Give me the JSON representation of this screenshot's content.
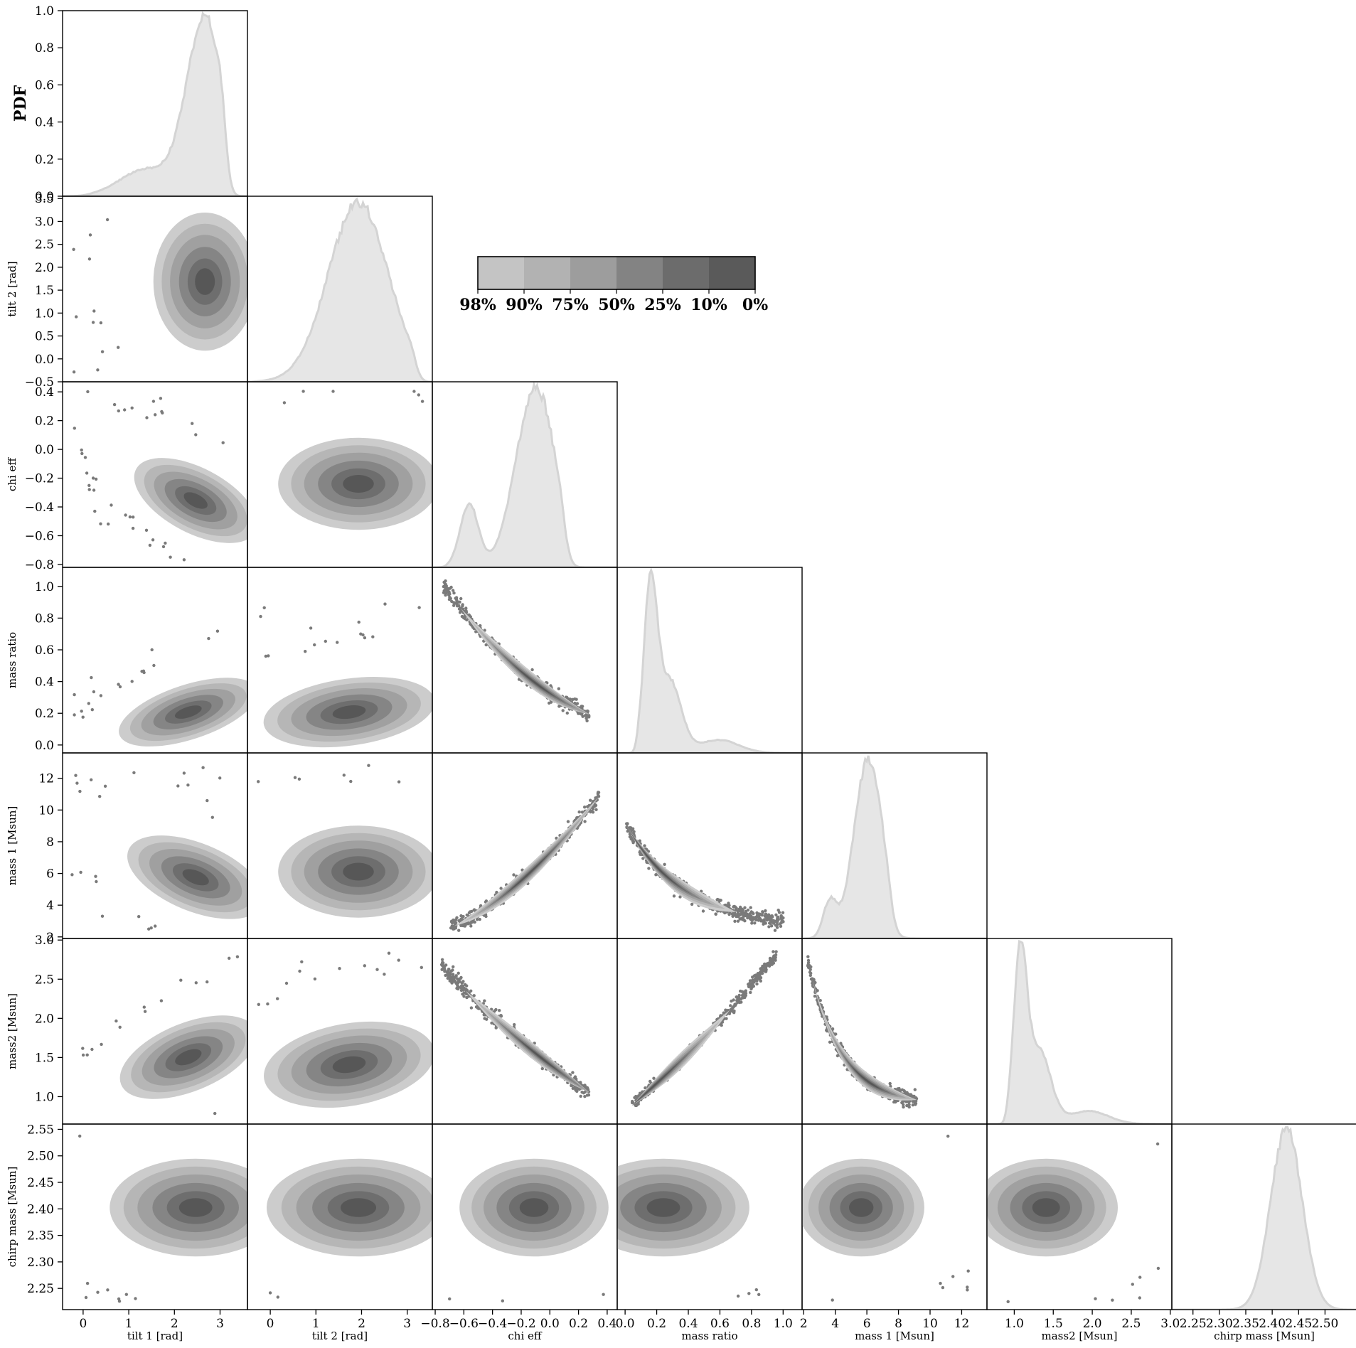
{
  "chart_data": {
    "type": "corner",
    "diag_label": "PDF",
    "colorbar": {
      "labels": [
        "98%",
        "90%",
        "75%",
        "50%",
        "25%",
        "10%",
        "0%"
      ],
      "colors": [
        "#c4c4c4",
        "#b2b2b2",
        "#9d9d9d",
        "#838383",
        "#6c6c6c",
        "#5a5a5a"
      ]
    },
    "colors": {
      "hist_fill": "#e6e6e6",
      "hist_line": "#d4d4d4",
      "scatter": "#7a7a7a",
      "levels": [
        "#cccccc",
        "#b6b6b6",
        "#a0a0a0",
        "#858585",
        "#6e6e6e",
        "#575757"
      ]
    },
    "params": [
      {
        "name": "tilt_1",
        "label": "tilt 1 [rad]",
        "range": [
          -0.45,
          3.6
        ],
        "ticks": [
          0,
          1,
          2,
          3
        ],
        "tick_labels": [
          "0",
          "1",
          "2",
          "3"
        ],
        "mode": 2.7,
        "hist_shape": "left-skewed",
        "hist_y_ticks": [
          0.0,
          0.2,
          0.4,
          0.6,
          0.8,
          1.0
        ],
        "hist_y_tick_labels": [
          "0.0",
          "0.2",
          "0.4",
          "0.6",
          "0.8",
          "1.0"
        ],
        "hist_y_range": [
          0,
          1
        ]
      },
      {
        "name": "tilt_2",
        "label": "tilt 2 [rad]",
        "range": [
          -0.5,
          3.55
        ],
        "ticks": [
          0,
          1,
          2,
          3
        ],
        "tick_labels": [
          "0",
          "1",
          "2",
          "3"
        ],
        "y_ticks": [
          -0.5,
          0.0,
          0.5,
          1.0,
          1.5,
          2.0,
          2.5,
          3.0,
          3.5
        ],
        "y_tick_labels": [
          "−0.5",
          "0.0",
          "0.5",
          "1.0",
          "1.5",
          "2.0",
          "2.5",
          "3.0",
          "3.5"
        ],
        "mode": 1.9,
        "hist_shape": "broad"
      },
      {
        "name": "chi_eff",
        "label": "chi eff",
        "range": [
          -0.82,
          0.47
        ],
        "ticks": [
          -0.8,
          -0.6,
          -0.4,
          -0.2,
          0.0,
          0.2,
          0.4
        ],
        "tick_labels": [
          "−0.8",
          "−0.6",
          "−0.4",
          "−0.2",
          "0.0",
          "0.2",
          "0.4"
        ],
        "y_ticks": [
          -0.8,
          -0.6,
          -0.4,
          -0.2,
          0.0,
          0.2,
          0.4
        ],
        "y_tick_labels": [
          "−0.8",
          "−0.6",
          "−0.4",
          "−0.2",
          "0.0",
          "0.2",
          "0.4"
        ],
        "mode": -0.1,
        "hist_shape": "bimodal"
      },
      {
        "name": "mass_ratio",
        "label": "mass ratio",
        "range": [
          -0.05,
          1.12
        ],
        "ticks": [
          0.0,
          0.2,
          0.4,
          0.6,
          0.8,
          1.0
        ],
        "tick_labels": [
          "0.0",
          "0.2",
          "0.4",
          "0.6",
          "0.8",
          "1.0"
        ],
        "y_ticks": [
          0.0,
          0.2,
          0.4,
          0.6,
          0.8,
          1.0
        ],
        "y_tick_labels": [
          "0.0",
          "0.2",
          "0.4",
          "0.6",
          "0.8",
          "1.0"
        ],
        "mode": 0.17,
        "hist_shape": "right-skewed"
      },
      {
        "name": "mass_1",
        "label": "mass 1 [Msun]",
        "range": [
          1.9,
          13.6
        ],
        "ticks": [
          2,
          4,
          6,
          8,
          10,
          12
        ],
        "tick_labels": [
          "2",
          "4",
          "6",
          "8",
          "10",
          "12"
        ],
        "y_ticks": [
          2,
          4,
          6,
          8,
          10,
          12
        ],
        "y_tick_labels": [
          "2",
          "4",
          "6",
          "8",
          "10",
          "12"
        ],
        "mode": 6.0,
        "hist_shape": "peaked"
      },
      {
        "name": "mass2",
        "label": "mass2 [Msun]",
        "range": [
          0.65,
          3.02
        ],
        "ticks": [
          1.0,
          1.5,
          2.0,
          2.5,
          3.0
        ],
        "tick_labels": [
          "1.0",
          "1.5",
          "2.0",
          "2.5",
          "3.0"
        ],
        "y_ticks": [
          1.0,
          1.5,
          2.0,
          2.5,
          3.0
        ],
        "y_tick_labels": [
          "1.0",
          "1.5",
          "2.0",
          "2.5",
          "3.0"
        ],
        "mode": 1.3,
        "hist_shape": "right-skewed"
      },
      {
        "name": "chirp_mass",
        "label": "chirp mass [Msun]",
        "range": [
          2.21,
          2.56
        ],
        "ticks": [
          2.25,
          2.3,
          2.35,
          2.4,
          2.45,
          2.5
        ],
        "tick_labels": [
          "2.25",
          "2.30",
          "2.35",
          "2.40",
          "2.45",
          "2.50"
        ],
        "y_ticks": [
          2.25,
          2.3,
          2.35,
          2.4,
          2.45,
          2.5,
          2.55
        ],
        "y_tick_labels": [
          "2.25",
          "2.30",
          "2.35",
          "2.40",
          "2.45",
          "2.50",
          "2.55"
        ],
        "mode": 2.42,
        "hist_shape": "gaussian"
      }
    ]
  }
}
